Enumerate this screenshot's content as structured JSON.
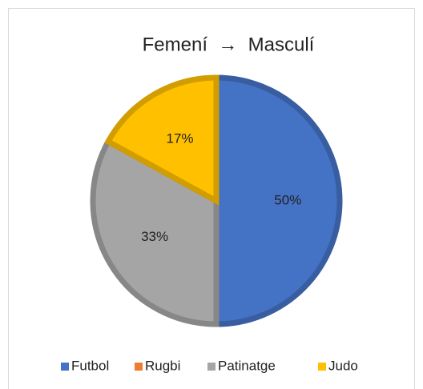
{
  "chart_data": {
    "type": "pie",
    "title": "Femení  →  Masculí",
    "categories": [
      "Futbol",
      "Rugbi",
      "Patinatge",
      "Judo"
    ],
    "values": [
      50,
      0,
      33,
      17
    ],
    "value_labels": [
      "50%",
      null,
      "33%",
      "17%"
    ],
    "colors": [
      "#4472c4",
      "#ed7d31",
      "#a5a5a5",
      "#ffc000"
    ],
    "legend": "bottom"
  }
}
